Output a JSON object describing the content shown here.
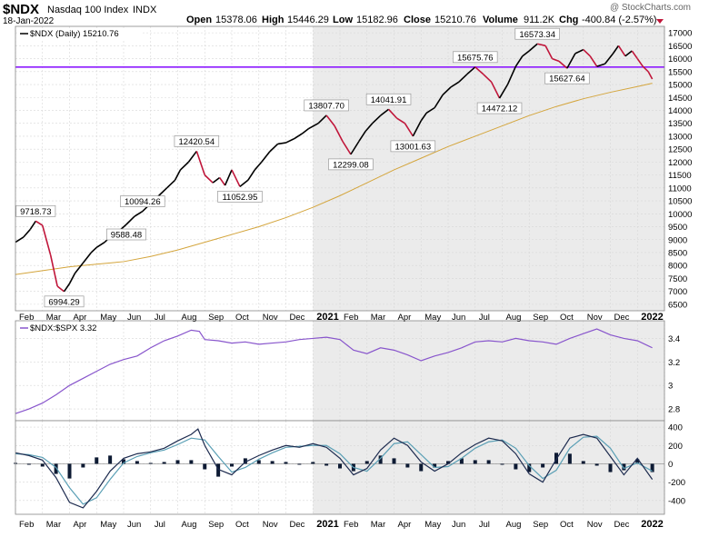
{
  "header": {
    "symbol": "$NDX",
    "name": "Nasdaq 100 Index",
    "exchange": "INDX",
    "date": "18-Jan-2022",
    "watermark": "@ StockCharts.com",
    "quote": {
      "open_label": "Open",
      "open": "15378.06",
      "high_label": "High",
      "high": "15446.29",
      "low_label": "Low",
      "low": "15182.96",
      "close_label": "Close",
      "close": "15210.76",
      "volume_label": "Volume",
      "volume": "911.2K",
      "chg_label": "Chg",
      "chg": "-400.84 (-2.57%)"
    }
  },
  "colors": {
    "up": "#000000",
    "down": "#c0163a",
    "ma": "#d4a53c",
    "horizontal_line": "#8c1aff",
    "ratio": "#8855cc",
    "macd": "#1d2b4f",
    "signal": "#5a9fb5",
    "shade": "#ebebeb"
  },
  "chart_data": [
    {
      "type": "line",
      "legend": "$NDX (Daily) 15210.76",
      "legend_position": "top-left",
      "y_ticks": [
        6500,
        7000,
        7500,
        8000,
        8500,
        9000,
        9500,
        10000,
        10500,
        11000,
        11500,
        12000,
        12500,
        13000,
        13500,
        14000,
        14500,
        15000,
        15500,
        16000,
        16500,
        17000
      ],
      "ylim": [
        6250,
        17250
      ],
      "x_months": [
        "Feb",
        "Mar",
        "Apr",
        "May",
        "Jun",
        "Jul",
        "Aug",
        "Sep",
        "Oct",
        "Nov",
        "Dec",
        "2021",
        "Feb",
        "Mar",
        "Apr",
        "May",
        "Jun",
        "Jul",
        "Aug",
        "Sep",
        "Oct",
        "Nov",
        "Dec",
        "2022"
      ],
      "x_range": [
        0,
        24
      ],
      "shaded_ranges": [
        [
          11,
          24
        ]
      ],
      "horizontal_line": 15675.76,
      "series": [
        {
          "x": [
            0,
            0.3,
            0.55,
            0.75,
            1.0,
            1.3,
            1.55,
            1.8,
            2.0,
            2.2,
            2.5,
            2.8,
            3.0,
            3.3,
            3.6,
            3.9,
            4.1,
            4.4,
            4.7,
            5.0,
            5.3,
            5.6,
            5.9,
            6.1,
            6.4,
            6.7,
            7.0,
            7.3,
            7.55,
            7.75,
            8.0,
            8.3,
            8.6,
            8.85,
            9.1,
            9.4,
            9.7,
            10.0,
            10.3,
            10.6,
            10.85,
            11.2,
            11.5,
            11.8,
            12.1,
            12.4,
            12.7,
            12.95,
            13.2,
            13.5,
            13.8,
            14.1,
            14.4,
            14.7,
            15.0,
            15.2,
            15.5,
            15.8,
            16.1,
            16.4,
            16.7,
            17.0,
            17.3,
            17.6,
            17.9,
            18.2,
            18.5,
            18.75,
            19.0,
            19.3,
            19.6,
            19.85,
            20.1,
            20.4,
            20.7,
            21.0,
            21.25,
            21.5,
            21.8,
            22.1,
            22.3,
            22.55,
            22.8,
            23.0,
            23.2,
            23.4,
            23.55
          ],
          "values": [
            8900,
            9100,
            9400,
            9718.73,
            9550,
            8400,
            7200,
            6994.29,
            7300,
            7700,
            8100,
            8500,
            8700,
            8900,
            9200,
            9400,
            9588.48,
            9900,
            10094.26,
            10400,
            10700,
            11000,
            11300,
            11700,
            12000,
            12420.54,
            11500,
            11200,
            11400,
            11100,
            11700,
            11052.95,
            11300,
            11700,
            12000,
            12400,
            12700,
            12750,
            12900,
            13100,
            13300,
            13500,
            13807.7,
            13400,
            12800,
            12299.08,
            12800,
            13200,
            13500,
            13800,
            14041.91,
            13700,
            13500,
            13001.63,
            13600,
            13900,
            14100,
            14600,
            14900,
            15100,
            15400,
            15675.76,
            15400,
            15100,
            14472.12,
            15000,
            15700,
            16100,
            16300,
            16573.34,
            16500,
            16000,
            15900,
            15627.64,
            16200,
            16350,
            16100,
            15700,
            15800,
            16200,
            16500,
            16100,
            16300,
            16000,
            15700,
            15500,
            15210.76
          ]
        },
        {
          "x": [
            0,
            1,
            2,
            3,
            4,
            5,
            6,
            7,
            8,
            9,
            10,
            11,
            12,
            13,
            14,
            15,
            16,
            17,
            18,
            19,
            20,
            21,
            22,
            23,
            23.55
          ],
          "values": [
            7650,
            7800,
            7950,
            8050,
            8150,
            8350,
            8600,
            8900,
            9200,
            9500,
            9850,
            10250,
            10700,
            11200,
            11700,
            12150,
            12600,
            13000,
            13400,
            13800,
            14150,
            14450,
            14700,
            14920,
            15050
          ]
        }
      ],
      "annotations": [
        {
          "label": "9718.73",
          "x": 0.75,
          "y": 9718.73,
          "pos": "above"
        },
        {
          "label": "6994.29",
          "x": 1.8,
          "y": 6994.29,
          "pos": "below"
        },
        {
          "label": "9588.48",
          "x": 4.1,
          "y": 9588.48,
          "pos": "below"
        },
        {
          "label": "10094.26",
          "x": 4.7,
          "y": 10094.26,
          "pos": "above"
        },
        {
          "label": "12420.54",
          "x": 6.7,
          "y": 12420.54,
          "pos": "above"
        },
        {
          "label": "11052.95",
          "x": 8.3,
          "y": 11052.95,
          "pos": "below"
        },
        {
          "label": "13807.70",
          "x": 11.5,
          "y": 13807.7,
          "pos": "above"
        },
        {
          "label": "12299.08",
          "x": 12.4,
          "y": 12299.08,
          "pos": "below"
        },
        {
          "label": "14041.91",
          "x": 13.8,
          "y": 14041.91,
          "pos": "above"
        },
        {
          "label": "13001.63",
          "x": 14.7,
          "y": 13001.63,
          "pos": "below"
        },
        {
          "label": "15675.76",
          "x": 17.0,
          "y": 15675.76,
          "pos": "above"
        },
        {
          "label": "14472.12",
          "x": 17.9,
          "y": 14472.12,
          "pos": "below"
        },
        {
          "label": "16573.34",
          "x": 19.3,
          "y": 16573.34,
          "pos": "above"
        },
        {
          "label": "15627.64",
          "x": 20.4,
          "y": 15627.64,
          "pos": "below"
        }
      ]
    },
    {
      "type": "line",
      "legend": "$NDX:$SPX 3.32",
      "legend_position": "top-left",
      "y_ticks": [
        2.8,
        3.0,
        3.2,
        3.4
      ],
      "ylim": [
        2.7,
        3.55
      ],
      "x_range": [
        0,
        24
      ],
      "series": [
        {
          "x": [
            0,
            0.5,
            1.0,
            1.5,
            2.0,
            2.5,
            3.0,
            3.5,
            4.0,
            4.5,
            5.0,
            5.5,
            6.0,
            6.5,
            6.8,
            7.0,
            7.5,
            8.0,
            8.5,
            9.0,
            9.5,
            10.0,
            10.5,
            11.0,
            11.5,
            12.0,
            12.5,
            13.0,
            13.5,
            14.0,
            14.5,
            15.0,
            15.5,
            16.0,
            16.5,
            17.0,
            17.5,
            18.0,
            18.5,
            19.0,
            19.5,
            20.0,
            20.5,
            21.0,
            21.5,
            22.0,
            22.5,
            23.0,
            23.55
          ],
          "values": [
            2.76,
            2.8,
            2.85,
            2.92,
            3.0,
            3.06,
            3.12,
            3.18,
            3.22,
            3.25,
            3.32,
            3.38,
            3.42,
            3.47,
            3.46,
            3.39,
            3.38,
            3.36,
            3.37,
            3.35,
            3.36,
            3.37,
            3.39,
            3.4,
            3.41,
            3.39,
            3.3,
            3.27,
            3.32,
            3.3,
            3.26,
            3.21,
            3.25,
            3.28,
            3.32,
            3.37,
            3.38,
            3.37,
            3.4,
            3.38,
            3.37,
            3.35,
            3.4,
            3.44,
            3.48,
            3.43,
            3.4,
            3.38,
            3.32
          ]
        }
      ]
    },
    {
      "type": "line",
      "legend": "",
      "y_ticks": [
        -400,
        -200,
        0,
        200,
        400
      ],
      "ylim": [
        -550,
        470
      ],
      "x_range": [
        0,
        24
      ],
      "series": [
        {
          "x": [
            0,
            0.5,
            1.0,
            1.5,
            2.0,
            2.5,
            3.0,
            3.5,
            4.0,
            4.5,
            5.0,
            5.5,
            6.0,
            6.5,
            6.75,
            7.0,
            7.5,
            8.0,
            8.5,
            9.0,
            9.5,
            10.0,
            10.5,
            11.0,
            11.5,
            12.0,
            12.5,
            13.0,
            13.5,
            14.0,
            14.5,
            15.0,
            15.5,
            16.0,
            16.5,
            17.0,
            17.5,
            18.0,
            18.5,
            19.0,
            19.5,
            20.0,
            20.5,
            21.0,
            21.5,
            22.0,
            22.5,
            23.0,
            23.55
          ],
          "values": [
            120,
            90,
            40,
            -150,
            -420,
            -480,
            -300,
            -80,
            60,
            110,
            130,
            170,
            250,
            320,
            380,
            200,
            -60,
            -120,
            20,
            90,
            150,
            200,
            180,
            220,
            180,
            60,
            -120,
            -50,
            150,
            280,
            200,
            20,
            -80,
            0,
            120,
            210,
            280,
            250,
            110,
            -110,
            -200,
            50,
            280,
            320,
            280,
            80,
            -120,
            60,
            -170
          ]
        },
        {
          "x": [
            0,
            0.5,
            1.0,
            1.5,
            2.0,
            2.5,
            3.0,
            3.5,
            4.0,
            4.5,
            5.0,
            5.5,
            6.0,
            6.5,
            7.0,
            7.5,
            8.0,
            8.5,
            9.0,
            9.5,
            10.0,
            10.5,
            11.0,
            11.5,
            12.0,
            12.5,
            13.0,
            13.5,
            14.0,
            14.5,
            15.0,
            15.5,
            16.0,
            16.5,
            17.0,
            17.5,
            18.0,
            18.5,
            19.0,
            19.5,
            20.0,
            20.5,
            21.0,
            21.5,
            22.0,
            22.5,
            23.0,
            23.55
          ],
          "values": [
            110,
            100,
            70,
            -40,
            -260,
            -440,
            -370,
            -170,
            10,
            80,
            120,
            150,
            210,
            280,
            260,
            80,
            -90,
            -40,
            50,
            120,
            180,
            190,
            200,
            200,
            110,
            -40,
            -80,
            60,
            220,
            240,
            100,
            -40,
            -30,
            60,
            170,
            240,
            260,
            170,
            -20,
            -160,
            -70,
            170,
            290,
            300,
            170,
            -50,
            10,
            -80
          ]
        }
      ],
      "histogram": {
        "x": [
          0,
          0.5,
          1.0,
          1.5,
          2.0,
          2.5,
          3.0,
          3.5,
          4.0,
          4.5,
          5.0,
          5.5,
          6.0,
          6.5,
          7.0,
          7.5,
          8.0,
          8.5,
          9.0,
          9.5,
          10.0,
          10.5,
          11.0,
          11.5,
          12.0,
          12.5,
          13.0,
          13.5,
          14.0,
          14.5,
          15.0,
          15.5,
          16.0,
          16.5,
          17.0,
          17.5,
          18.0,
          18.5,
          19.0,
          19.5,
          20.0,
          20.5,
          21.0,
          21.5,
          22.0,
          22.5,
          23.0,
          23.55
        ],
        "values": [
          10,
          -10,
          -30,
          -110,
          -160,
          -40,
          70,
          90,
          50,
          30,
          10,
          20,
          40,
          40,
          -60,
          -140,
          -30,
          60,
          40,
          30,
          20,
          -10,
          20,
          -20,
          -50,
          -80,
          30,
          90,
          60,
          -40,
          -80,
          -40,
          30,
          60,
          40,
          40,
          -10,
          -60,
          -90,
          -40,
          120,
          110,
          30,
          -20,
          -90,
          -70,
          50,
          -90
        ]
      }
    }
  ],
  "x_axis_labels": [
    "Feb",
    "Mar",
    "Apr",
    "May",
    "Jun",
    "Jul",
    "Aug",
    "Sep",
    "Oct",
    "Nov",
    "Dec",
    "2021",
    "Feb",
    "Mar",
    "Apr",
    "May",
    "Jun",
    "Jul",
    "Aug",
    "Sep",
    "Oct",
    "Nov",
    "Dec",
    "2022"
  ]
}
